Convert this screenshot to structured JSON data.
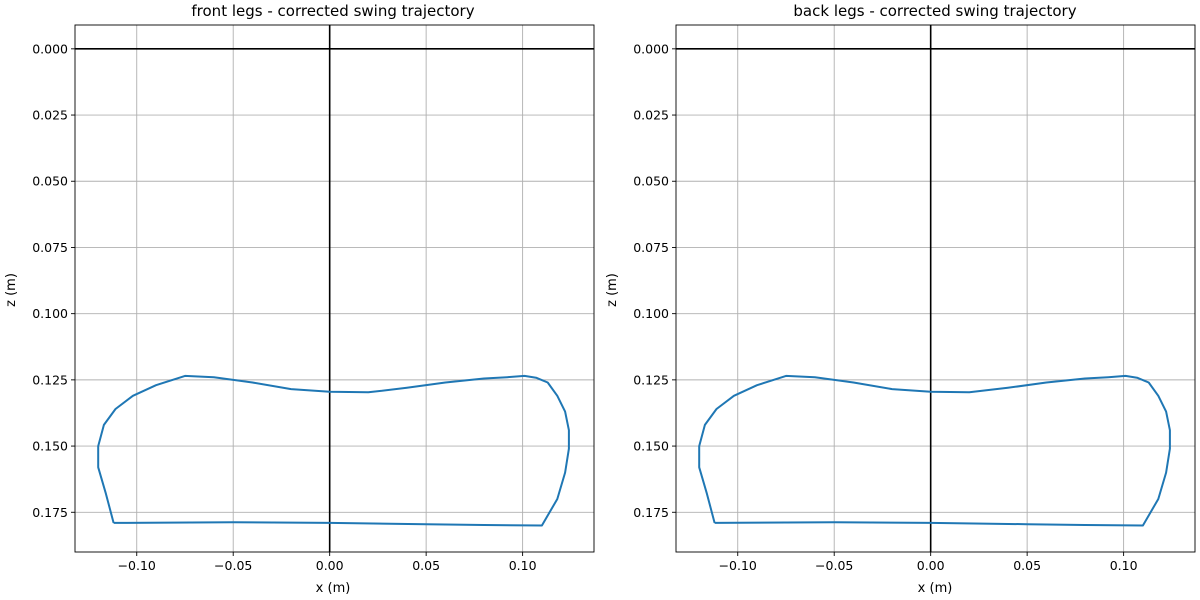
{
  "chart_data": [
    {
      "type": "line",
      "title": "front legs - corrected swing trajectory",
      "xlabel": "x (m)",
      "ylabel": "z (m)",
      "xlim": [
        -0.132,
        0.137
      ],
      "ylim": [
        0.19,
        -0.009
      ],
      "y_inverted": true,
      "grid": true,
      "xticks": [
        -0.1,
        -0.05,
        0.0,
        0.05,
        0.1
      ],
      "xtick_labels": [
        "−0.10",
        "−0.05",
        "0.00",
        "0.05",
        "0.10"
      ],
      "yticks": [
        0.0,
        0.025,
        0.05,
        0.075,
        0.1,
        0.125,
        0.15,
        0.175
      ],
      "ytick_labels": [
        "0.000",
        "0.025",
        "0.050",
        "0.075",
        "0.100",
        "0.125",
        "0.150",
        "0.175"
      ],
      "reference_lines": {
        "x": 0,
        "y": 0
      },
      "series": [
        {
          "color": "#1f77b4",
          "x": [
            -0.112,
            -0.116,
            -0.12,
            -0.12,
            -0.117,
            -0.111,
            -0.102,
            -0.09,
            -0.075,
            -0.06,
            -0.04,
            -0.02,
            0.0,
            0.02,
            0.04,
            0.06,
            0.08,
            0.092,
            0.101,
            0.107,
            0.113,
            0.118,
            0.122,
            0.124,
            0.124,
            0.122,
            0.118,
            0.11,
            0.08,
            0.05,
            0.0,
            -0.05,
            -0.112
          ],
          "y": [
            0.179,
            0.168,
            0.158,
            0.15,
            0.142,
            0.136,
            0.131,
            0.127,
            0.1235,
            0.124,
            0.126,
            0.1285,
            0.1295,
            0.1297,
            0.128,
            0.126,
            0.1245,
            0.124,
            0.1235,
            0.1242,
            0.126,
            0.131,
            0.137,
            0.144,
            0.151,
            0.16,
            0.17,
            0.18,
            0.1798,
            0.1795,
            0.179,
            0.1788,
            0.179
          ]
        }
      ]
    },
    {
      "type": "line",
      "title": "back legs - corrected swing trajectory",
      "xlabel": "x (m)",
      "ylabel": "z (m)",
      "xlim": [
        -0.132,
        0.137
      ],
      "ylim": [
        0.19,
        -0.009
      ],
      "y_inverted": true,
      "grid": true,
      "xticks": [
        -0.1,
        -0.05,
        0.0,
        0.05,
        0.1
      ],
      "xtick_labels": [
        "−0.10",
        "−0.05",
        "0.00",
        "0.05",
        "0.10"
      ],
      "yticks": [
        0.0,
        0.025,
        0.05,
        0.075,
        0.1,
        0.125,
        0.15,
        0.175
      ],
      "ytick_labels": [
        "0.000",
        "0.025",
        "0.050",
        "0.075",
        "0.100",
        "0.125",
        "0.150",
        "0.175"
      ],
      "reference_lines": {
        "x": 0,
        "y": 0
      },
      "series": [
        {
          "color": "#1f77b4",
          "x": [
            -0.112,
            -0.116,
            -0.12,
            -0.12,
            -0.117,
            -0.111,
            -0.102,
            -0.09,
            -0.075,
            -0.06,
            -0.04,
            -0.02,
            0.0,
            0.02,
            0.04,
            0.06,
            0.08,
            0.092,
            0.101,
            0.107,
            0.113,
            0.118,
            0.122,
            0.124,
            0.124,
            0.122,
            0.118,
            0.11,
            0.08,
            0.05,
            0.0,
            -0.05,
            -0.112
          ],
          "y": [
            0.179,
            0.168,
            0.158,
            0.15,
            0.142,
            0.136,
            0.131,
            0.127,
            0.1235,
            0.124,
            0.126,
            0.1285,
            0.1295,
            0.1297,
            0.128,
            0.126,
            0.1245,
            0.124,
            0.1235,
            0.1242,
            0.126,
            0.131,
            0.137,
            0.144,
            0.151,
            0.16,
            0.17,
            0.18,
            0.1798,
            0.1795,
            0.179,
            0.1788,
            0.179
          ]
        }
      ]
    }
  ]
}
